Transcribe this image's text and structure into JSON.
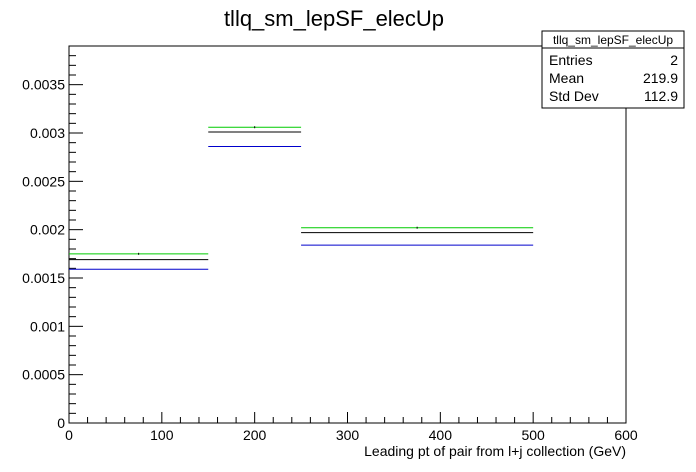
{
  "chart_data": {
    "type": "histogram",
    "title": "tllq_sm_lepSF_elecUp",
    "xlabel": "Leading pt of pair from l+j collection (GeV)",
    "ylabel": "",
    "xlim": [
      0,
      600
    ],
    "ylim": [
      0,
      0.0039
    ],
    "x_ticks": [
      0,
      100,
      200,
      300,
      400,
      500,
      600
    ],
    "x_tick_labels": [
      "0",
      "100",
      "200",
      "300",
      "400",
      "500",
      "600"
    ],
    "y_ticks": [
      0,
      0.0005,
      0.001,
      0.0015,
      0.002,
      0.0025,
      0.003,
      0.0035
    ],
    "y_tick_labels": [
      "0",
      "0.0005",
      "0.001",
      "0.0015",
      "0.002",
      "0.0025",
      "0.003",
      "0.0035"
    ],
    "bins": [
      [
        0,
        150
      ],
      [
        150,
        250
      ],
      [
        250,
        500
      ]
    ],
    "series": [
      {
        "color": "#00cc00",
        "values": [
          0.00175,
          0.00306,
          0.00202
        ]
      },
      {
        "color": "#000000",
        "values": [
          0.00169,
          0.00301,
          0.00197
        ]
      },
      {
        "color": "#0000cc",
        "values": [
          0.00159,
          0.00286,
          0.00184
        ]
      }
    ],
    "grid": false,
    "legend": "none",
    "stats_box": {
      "title": "tllq_sm_lepSF_elecUp",
      "placement": "top-right",
      "rows": [
        {
          "label": "Entries",
          "value": "2"
        },
        {
          "label": "Mean",
          "value": "219.9"
        },
        {
          "label": "Std Dev",
          "value": "112.9"
        }
      ]
    }
  }
}
